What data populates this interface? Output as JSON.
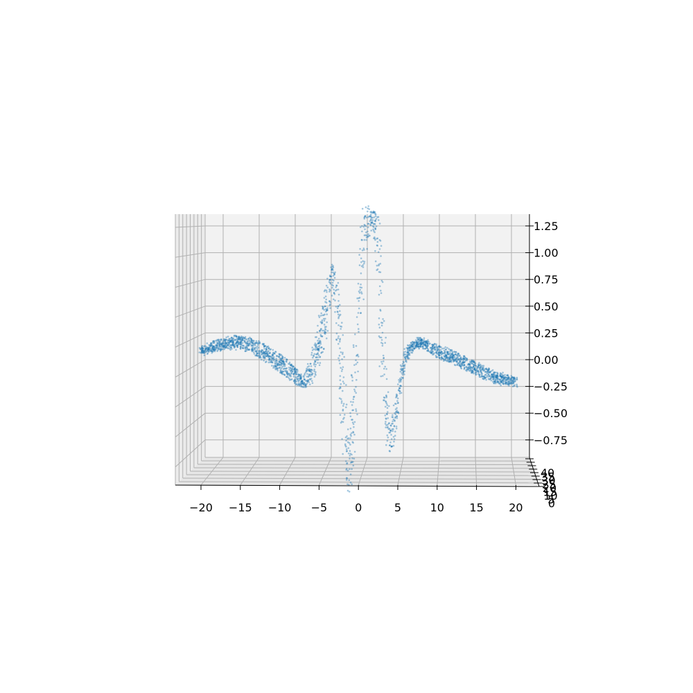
{
  "chart_data": {
    "type": "scatter",
    "projection": "3d",
    "title": "",
    "xlabel": "",
    "ylabel": "",
    "zlabel": "",
    "grid": true,
    "marker_color": "#1f77b4",
    "marker_alpha": 0.4,
    "pane_color": "#f2f2f2",
    "grid_color": "#b0b0b0",
    "xlim": [
      -22.5,
      22.5
    ],
    "zlim": [
      -0.92,
      1.35
    ],
    "ylim": [
      0,
      40
    ],
    "x_ticks": [
      "−20",
      "−15",
      "−10",
      "−5",
      "0",
      "5",
      "10",
      "15",
      "20"
    ],
    "z_ticks": [
      "1.25",
      "1.00",
      "0.75",
      "0.50",
      "0.25",
      "0.00",
      "−0.25",
      "−0.50",
      "−0.75"
    ],
    "y_ticks": [
      "0",
      "5",
      "10",
      "15",
      "20",
      "25",
      "30",
      "35",
      "40"
    ],
    "series": [
      {
        "x": [
          -20,
          -18,
          -16,
          -15,
          -14,
          -12,
          -10,
          -9,
          -8,
          -7,
          -6,
          -5,
          -4,
          -3.5,
          -3,
          -2.5,
          -2,
          -1.5,
          -1,
          -0.5,
          0,
          0.5,
          1,
          1.5,
          2,
          2.5,
          3,
          3.5,
          4,
          4.5,
          5,
          5.5,
          6,
          7,
          8,
          9,
          10,
          12,
          14,
          16,
          18,
          20
        ],
        "z_center": [
          0.08,
          0.13,
          0.16,
          0.16,
          0.14,
          0.07,
          -0.03,
          -0.09,
          -0.16,
          -0.2,
          -0.12,
          0.15,
          0.5,
          0.74,
          0.75,
          0.3,
          -0.35,
          -0.9,
          -0.88,
          -0.35,
          0.4,
          1.05,
          1.28,
          1.32,
          1.33,
          1.05,
          0.25,
          -0.45,
          -0.75,
          -0.6,
          -0.38,
          -0.15,
          0.05,
          0.14,
          0.16,
          0.12,
          0.08,
          0.02,
          -0.05,
          -0.12,
          -0.18,
          -0.2
        ],
        "z_spread": [
          0.03,
          0.04,
          0.05,
          0.06,
          0.07,
          0.08,
          0.09,
          0.09,
          0.08,
          0.06,
          0.1,
          0.16,
          0.22,
          0.15,
          0.12,
          0.35,
          0.45,
          0.35,
          0.3,
          0.45,
          0.45,
          0.35,
          0.18,
          0.08,
          0.06,
          0.3,
          0.45,
          0.35,
          0.12,
          0.08,
          0.05,
          0.04,
          0.04,
          0.04,
          0.05,
          0.05,
          0.06,
          0.06,
          0.06,
          0.06,
          0.05,
          0.05
        ]
      }
    ]
  }
}
